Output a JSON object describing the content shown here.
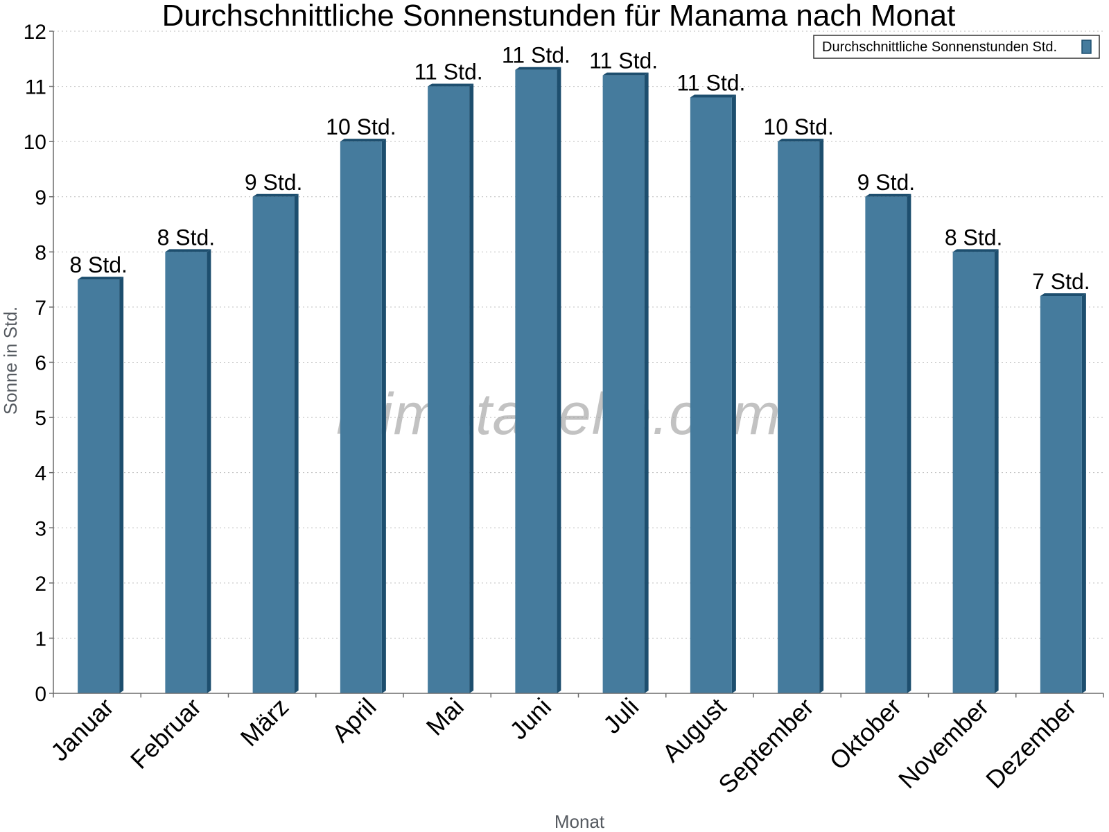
{
  "chart_data": {
    "type": "bar",
    "title": "Durchschnittliche Sonnenstunden für Manama nach Monat",
    "xlabel": "Monat",
    "ylabel": "Sonne in Std.",
    "ylim": [
      0,
      12
    ],
    "yticks": [
      0,
      1,
      2,
      3,
      4,
      5,
      6,
      7,
      8,
      9,
      10,
      11,
      12
    ],
    "grid": true,
    "legend_position": "top-right",
    "categories": [
      "Januar",
      "Februar",
      "März",
      "April",
      "Mai",
      "Juni",
      "Juli",
      "August",
      "September",
      "Oktober",
      "November",
      "Dezember"
    ],
    "series": [
      {
        "name": "Durchschnittliche Sonnenstunden Std.",
        "values": [
          7.5,
          8.0,
          9.0,
          10.0,
          11.0,
          11.3,
          11.2,
          10.8,
          10.0,
          9.0,
          8.0,
          7.2
        ],
        "labels": [
          "8 Std.",
          "8 Std.",
          "9 Std.",
          "10 Std.",
          "11 Std.",
          "11 Std.",
          "11 Std.",
          "11 Std.",
          "10 Std.",
          "9 Std.",
          "8 Std.",
          "7 Std."
        ],
        "color": "#457b9d",
        "side_color": "#1d4e6e"
      }
    ],
    "watermark": "klimatabelle.com"
  }
}
